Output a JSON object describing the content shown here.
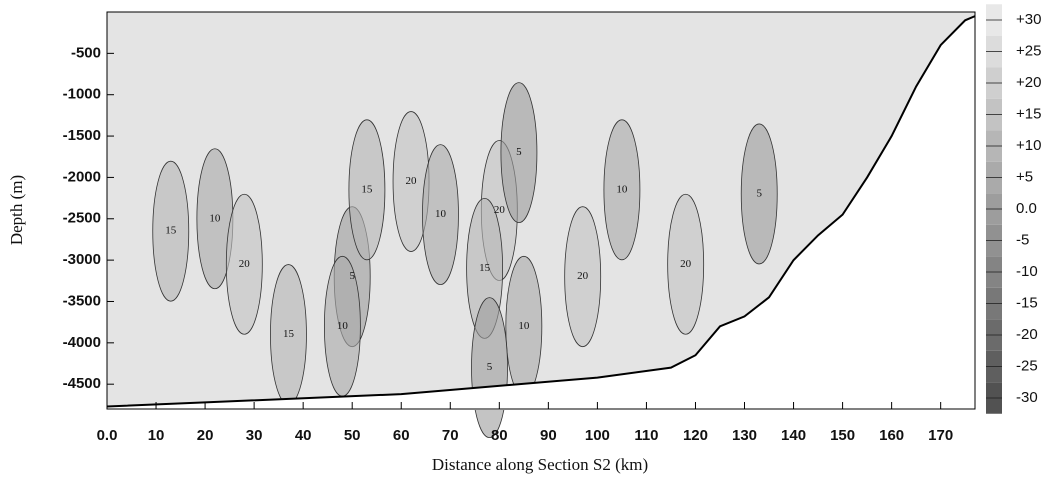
{
  "chart_data": {
    "type": "contour",
    "xlabel": "Distance along Section S2 (km)",
    "ylabel": "Depth (m)",
    "xlim": [
      0,
      177
    ],
    "ylim": [
      -4800,
      0
    ],
    "xticks": [
      {
        "value": 0,
        "label": "0.0"
      },
      10,
      20,
      30,
      40,
      50,
      60,
      70,
      80,
      90,
      100,
      110,
      120,
      130,
      140,
      150,
      160,
      170
    ],
    "yticks": [
      -500,
      -1000,
      -1500,
      -2000,
      -2500,
      -3000,
      -3500,
      -4000,
      -4500
    ],
    "colorbar": [
      {
        "value": 30,
        "label": "+30"
      },
      {
        "value": 25,
        "label": "+25"
      },
      {
        "value": 20,
        "label": "+20"
      },
      {
        "value": 15,
        "label": "+15"
      },
      {
        "value": 10,
        "label": "+10"
      },
      {
        "value": 5,
        "label": "+5"
      },
      {
        "value": 0,
        "label": "0.0"
      },
      -5,
      -10,
      -15,
      -20,
      -25,
      -30
    ],
    "bathymetry": {
      "x": [
        0,
        20,
        60,
        100,
        115,
        120,
        125,
        130,
        135,
        140,
        145,
        150,
        155,
        160,
        165,
        170,
        175,
        177
      ],
      "depth": [
        -4770,
        -4720,
        -4620,
        -4420,
        -4300,
        -4150,
        -3800,
        -3680,
        -3450,
        -3000,
        -2700,
        -2450,
        -2000,
        -1500,
        -900,
        -400,
        -100,
        -50
      ]
    },
    "contour_labels": {
      "x": [
        13,
        22,
        28,
        37,
        50,
        48,
        53,
        62,
        68,
        80,
        84,
        77,
        97,
        85,
        105,
        118,
        133,
        78
      ],
      "depth": [
        -2650,
        -2500,
        -3050,
        -3900,
        -3200,
        -3800,
        -2150,
        -2050,
        -2450,
        -2400,
        -1700,
        -3100,
        -3200,
        -3800,
        -2150,
        -3050,
        -2200,
        -4300
      ],
      "values": [
        15,
        10,
        20,
        15,
        5,
        10,
        15,
        20,
        10,
        20,
        5,
        15,
        20,
        10,
        10,
        20,
        5,
        5
      ]
    }
  }
}
